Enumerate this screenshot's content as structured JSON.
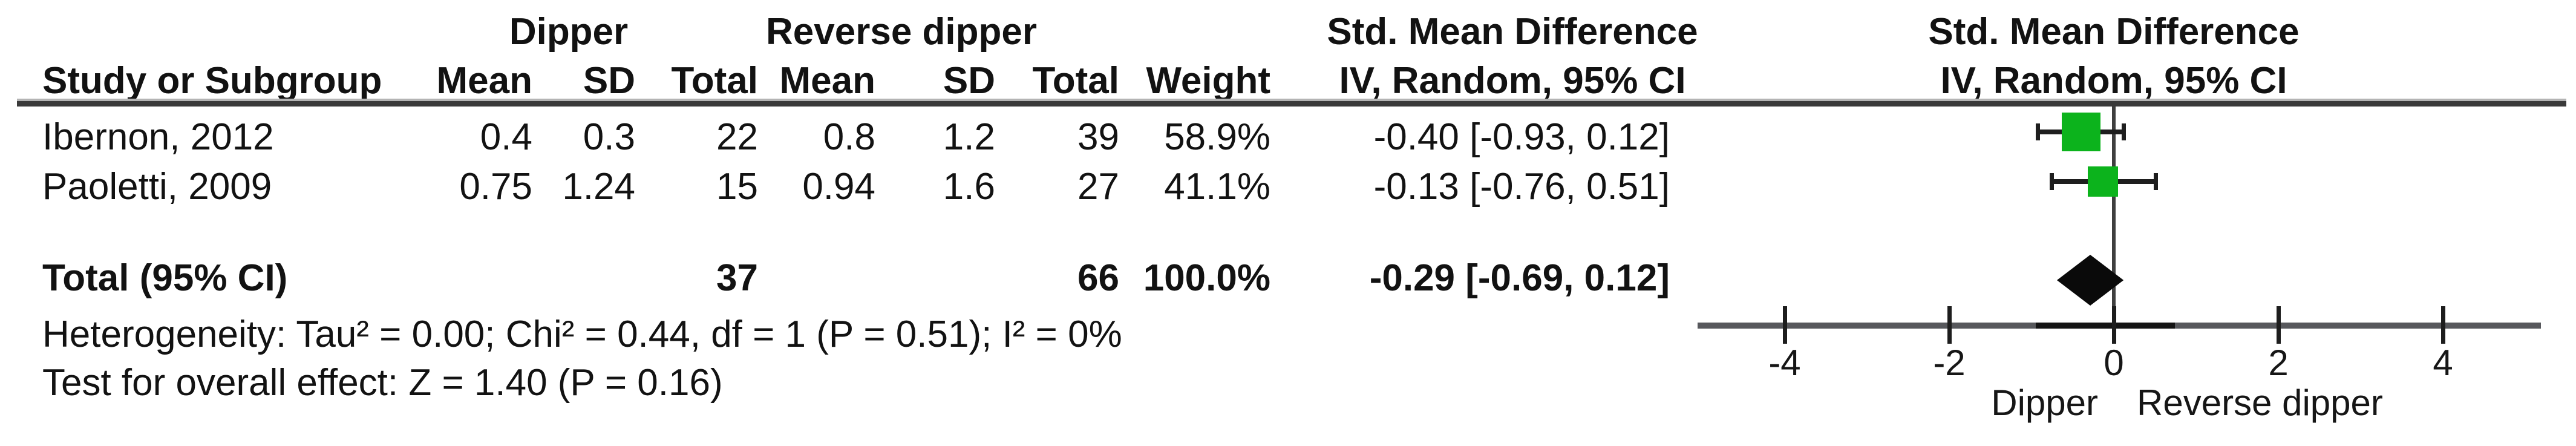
{
  "table": {
    "group_headers": {
      "group1": "Dipper",
      "group2": "Reverse dipper"
    },
    "effect_header_line1": "Std. Mean Difference",
    "effect_header_line2": "IV, Random, 95% CI",
    "col_headers": {
      "study": "Study or Subgroup",
      "mean": "Mean",
      "sd": "SD",
      "total": "Total",
      "weight": "Weight"
    },
    "rows": [
      {
        "study": "Ibernon, 2012",
        "mean1": "0.4",
        "sd1": "0.3",
        "total1": "22",
        "mean2": "0.8",
        "sd2": "1.2",
        "total2": "39",
        "weight": "58.9%",
        "ci": "-0.40 [-0.93, 0.12]"
      },
      {
        "study": "Paoletti, 2009",
        "mean1": "0.75",
        "sd1": "1.24",
        "total1": "15",
        "mean2": "0.94",
        "sd2": "1.6",
        "total2": "27",
        "weight": "41.1%",
        "ci": "-0.13 [-0.76, 0.51]"
      }
    ],
    "total_row": {
      "label": "Total (95% CI)",
      "total1": "37",
      "total2": "66",
      "weight": "100.0%",
      "ci": "-0.29 [-0.69, 0.12]"
    },
    "footnotes": {
      "heterogeneity": "Heterogeneity: Tau² = 0.00; Chi² = 0.44, df = 1 (P = 0.51); I² = 0%",
      "overall_effect": "Test for overall effect: Z = 1.40 (P = 0.16)"
    }
  },
  "axis": {
    "left_label": "Dipper",
    "right_label": "Reverse dipper"
  },
  "colors": {
    "square_green": "#0cb31c",
    "diamond_black": "#0a0a0a",
    "axis_gray": "#57585c",
    "rule_dark": "#3a3a3a",
    "text": "#121212"
  },
  "chart_data": {
    "type": "forest",
    "effect_measure": "Std. Mean Difference",
    "model": "IV, Random, 95% CI",
    "comparison": {
      "group1": "Dipper",
      "group2": "Reverse dipper"
    },
    "studies": [
      {
        "name": "Ibernon, 2012",
        "mean1": 0.4,
        "sd1": 0.3,
        "n1": 22,
        "mean2": 0.8,
        "sd2": 1.2,
        "n2": 39,
        "weight_pct": 58.9,
        "estimate": -0.4,
        "ci_lower": -0.93,
        "ci_upper": 0.12
      },
      {
        "name": "Paoletti, 2009",
        "mean1": 0.75,
        "sd1": 1.24,
        "n1": 15,
        "mean2": 0.94,
        "sd2": 1.6,
        "n2": 27,
        "weight_pct": 41.1,
        "estimate": -0.13,
        "ci_lower": -0.76,
        "ci_upper": 0.51
      }
    ],
    "total": {
      "n1": 37,
      "n2": 66,
      "weight_pct": 100.0,
      "estimate": -0.29,
      "ci_lower": -0.69,
      "ci_upper": 0.12
    },
    "heterogeneity": {
      "tau2": 0.0,
      "chi2": 0.44,
      "df": 1,
      "p": 0.51,
      "i2_pct": 0
    },
    "overall_effect": {
      "z": 1.4,
      "p": 0.16
    },
    "x_ticks": [
      -4,
      -2,
      0,
      2,
      4
    ],
    "xlim": [
      -5,
      5
    ],
    "axis_left_label": "Dipper",
    "axis_right_label": "Reverse dipper"
  }
}
